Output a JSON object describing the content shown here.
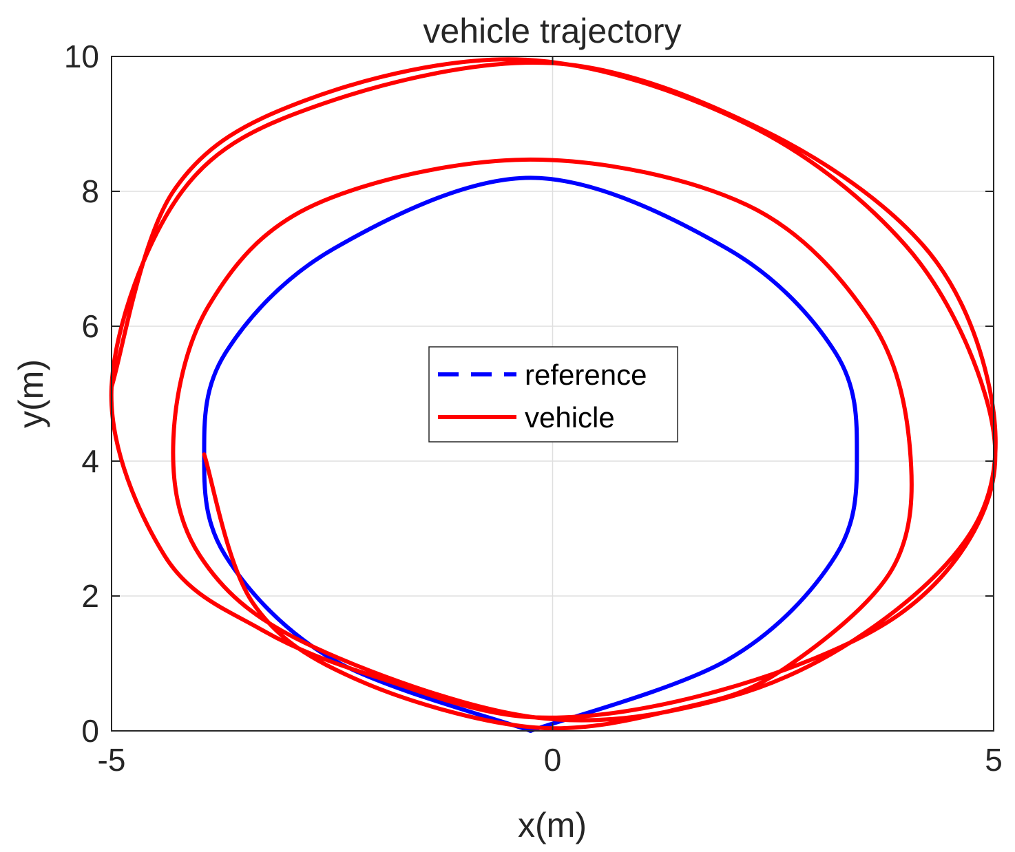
{
  "chart_data": {
    "type": "line",
    "title": "vehicle trajectory",
    "xlabel": "x(m)",
    "ylabel": "y(m)",
    "xlim": [
      -5,
      5
    ],
    "ylim": [
      0,
      10
    ],
    "xticks": [
      -5,
      0,
      5
    ],
    "yticks": [
      0,
      2,
      4,
      6,
      8,
      10
    ],
    "x_tick_labels": [
      "-5",
      "0",
      "5"
    ],
    "y_tick_labels": [
      "0",
      "2",
      "4",
      "6",
      "8",
      "10"
    ],
    "grid": true,
    "legend_position": "center",
    "series": [
      {
        "name": "reference",
        "color": "#0000ff",
        "line_style": "dashed",
        "shape": "closed ellipse",
        "x": [
          -0.25,
          1.98,
          3.21,
          3.45,
          3.21,
          1.98,
          -0.25,
          -2.48,
          -3.71,
          -3.95,
          -3.71,
          -2.48,
          -0.25
        ],
        "y": [
          0.0,
          1.05,
          2.6,
          4.1,
          5.6,
          7.15,
          8.2,
          7.15,
          5.6,
          4.1,
          2.6,
          1.05,
          0.0
        ]
      },
      {
        "name": "vehicle",
        "color": "#ff0000",
        "line_style": "solid",
        "shape": "spiral converging onto closed orbit",
        "x": [
          -3.95,
          -3.4,
          -2.2,
          -0.2,
          1.5,
          2.6,
          3.85,
          4.05,
          3.6,
          2.2,
          -0.25,
          -2.7,
          -3.9,
          -4.3,
          -4.0,
          -2.8,
          -0.2,
          2.0,
          3.7,
          4.85,
          4.95,
          4.2,
          2.4,
          0.0,
          -2.6,
          -4.2,
          -5.0,
          -4.4,
          -3.3,
          -2.0,
          -0.2,
          1.9,
          3.9,
          4.9,
          4.9,
          4.0,
          2.2,
          -0.3,
          -2.8,
          -4.3,
          -5.0
        ],
        "y": [
          4.1,
          1.9,
          0.75,
          0.05,
          0.35,
          0.9,
          2.4,
          4.2,
          6.1,
          7.8,
          8.47,
          7.8,
          6.3,
          4.3,
          2.6,
          1.3,
          0.2,
          0.5,
          1.6,
          3.2,
          5.1,
          7.2,
          8.9,
          9.9,
          9.3,
          8.0,
          5.1,
          2.6,
          1.5,
          0.8,
          0.2,
          0.6,
          1.7,
          3.3,
          5.0,
          7.2,
          9.0,
          9.95,
          9.35,
          8.0,
          5.1
        ]
      }
    ]
  }
}
